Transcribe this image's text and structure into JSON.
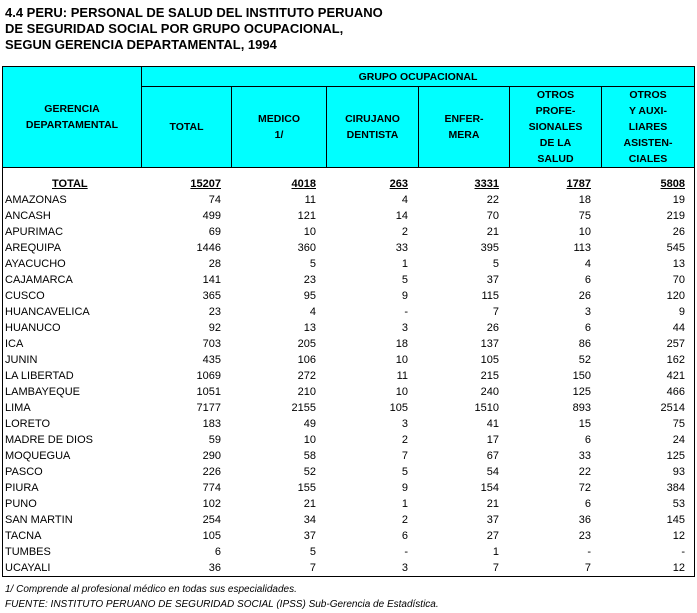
{
  "title": [
    "4.4  PERU: PERSONAL DE SALUD DEL INSTITUTO PERUANO",
    "DE SEGURIDAD SOCIAL POR GRUPO OCUPACIONAL,",
    "SEGUN GERENCIA DEPARTAMENTAL, 1994"
  ],
  "table": {
    "group_header": "GRUPO OCUPACIONAL",
    "columns": [
      [
        "GERENCIA",
        "DEPARTAMENTAL"
      ],
      [
        "TOTAL"
      ],
      [
        "MEDICO",
        "1/"
      ],
      [
        "CIRUJANO",
        "DENTISTA"
      ],
      [
        "ENFER-",
        "MERA"
      ],
      [
        "OTROS",
        "PROFE-",
        "SIONALES",
        "DE LA",
        "SALUD"
      ],
      [
        "OTROS",
        "Y AUXI-",
        "LIARES",
        "ASISTEN-",
        "CIALES"
      ]
    ],
    "total_row": [
      "TOTAL",
      15207,
      4018,
      263,
      3331,
      1787,
      5808
    ],
    "rows": [
      [
        "AMAZONAS",
        74,
        11,
        4,
        22,
        18,
        19
      ],
      [
        "ANCASH",
        499,
        121,
        14,
        70,
        75,
        219
      ],
      [
        "APURIMAC",
        69,
        10,
        2,
        21,
        10,
        26
      ],
      [
        "AREQUIPA",
        1446,
        360,
        33,
        395,
        113,
        545
      ],
      [
        "AYACUCHO",
        28,
        5,
        1,
        5,
        4,
        13
      ],
      [
        "CAJAMARCA",
        141,
        23,
        5,
        37,
        6,
        70
      ],
      [
        "CUSCO",
        365,
        95,
        9,
        115,
        26,
        120
      ],
      [
        "HUANCAVELICA",
        23,
        4,
        "-",
        7,
        3,
        9
      ],
      [
        "HUANUCO",
        92,
        13,
        3,
        26,
        6,
        44
      ],
      [
        "ICA",
        703,
        205,
        18,
        137,
        86,
        257
      ],
      [
        "JUNIN",
        435,
        106,
        10,
        105,
        52,
        162
      ],
      [
        "LA LIBERTAD",
        1069,
        272,
        11,
        215,
        150,
        421
      ],
      [
        "LAMBAYEQUE",
        1051,
        210,
        10,
        240,
        125,
        466
      ],
      [
        "LIMA",
        7177,
        2155,
        105,
        1510,
        893,
        2514
      ],
      [
        "LORETO",
        183,
        49,
        3,
        41,
        15,
        75
      ],
      [
        "MADRE DE DIOS",
        59,
        10,
        2,
        17,
        6,
        24
      ],
      [
        "MOQUEGUA",
        290,
        58,
        7,
        67,
        33,
        125
      ],
      [
        "PASCO",
        226,
        52,
        5,
        54,
        22,
        93
      ],
      [
        "PIURA",
        774,
        155,
        9,
        154,
        72,
        384
      ],
      [
        "PUNO",
        102,
        21,
        1,
        21,
        6,
        53
      ],
      [
        "SAN MARTIN",
        254,
        34,
        2,
        37,
        36,
        145
      ],
      [
        "TACNA",
        105,
        37,
        6,
        27,
        23,
        12
      ],
      [
        "TUMBES",
        6,
        5,
        "-",
        1,
        "-",
        "-"
      ],
      [
        "UCAYALI",
        36,
        7,
        3,
        7,
        7,
        12
      ]
    ]
  },
  "footnotes": [
    "1/ Comprende al profesional médico en  todas sus especialidades.",
    "FUENTE: INSTITUTO PERUANO DE SEGURIDAD SOCIAL (IPSS) Sub-Gerencia de Estadística."
  ]
}
